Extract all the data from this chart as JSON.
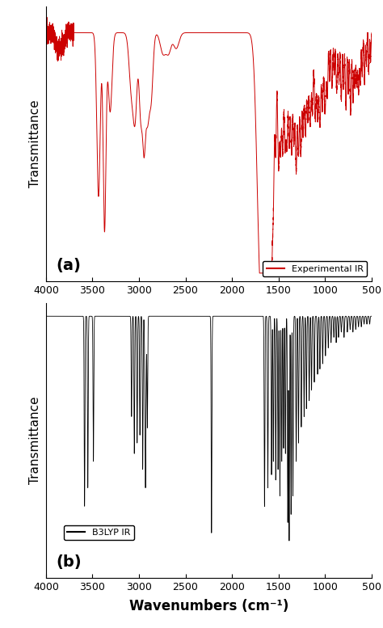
{
  "title_a": "(a)",
  "title_b": "(b)",
  "legend_a": "Experimental IR",
  "legend_b": "B3LYP IR",
  "xlabel": "Wavenumbers (cm⁻¹)",
  "ylabel": "Transmittance",
  "color_a": "#cc0000",
  "color_b": "#000000",
  "xticks": [
    4000,
    3500,
    3000,
    2500,
    2000,
    1500,
    1000,
    500
  ],
  "background": "#ffffff"
}
